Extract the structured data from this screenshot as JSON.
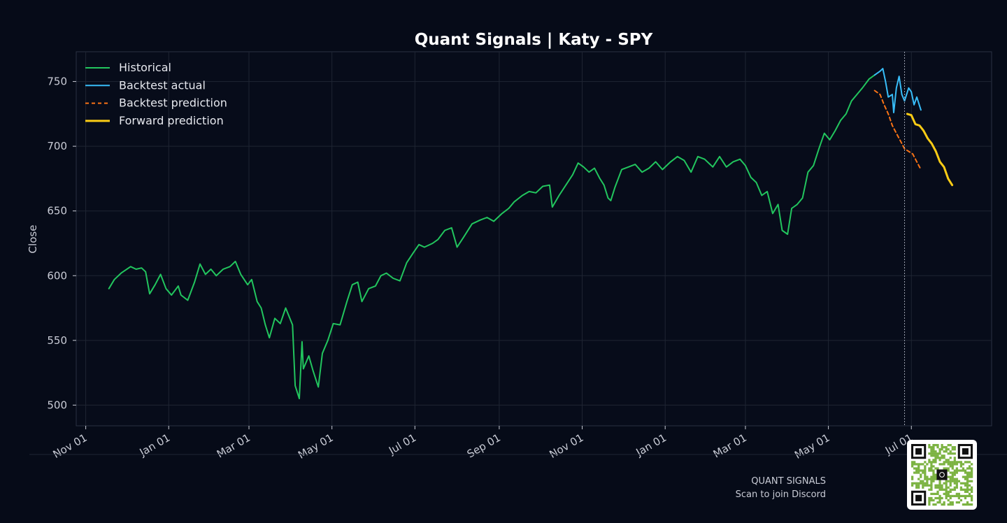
{
  "footer": {
    "brand": "QUANT SIGNALS",
    "cta": "Scan to join Discord"
  },
  "qr_icon": "qr-code-icon",
  "colors": {
    "background": "#060b18",
    "historical": "#22c55e",
    "backtest_actual": "#38bdf8",
    "backtest_prediction": "#f97316",
    "forward_prediction": "#facc15",
    "grid": "#1f2533"
  },
  "chart_data": {
    "type": "line",
    "title": "Quant Signals | Katy - SPY",
    "xlabel": "",
    "ylabel": "Close",
    "ylim": [
      484,
      773
    ],
    "xlim": [
      "2024-10-25",
      "2026-08-29"
    ],
    "grid": true,
    "legend_position": "top-left",
    "x_ticks": [
      "2024-11-01",
      "2025-01-01",
      "2025-03-01",
      "2025-05-01",
      "2025-07-01",
      "2025-09-01",
      "2025-11-01",
      "2026-01-01",
      "2026-03-01",
      "2026-05-01",
      "2026-07-01"
    ],
    "x_tick_labels": [
      "Nov 01",
      "Jan 01",
      "Mar 01",
      "May 01",
      "Jul 01",
      "Sep 01",
      "Nov 01",
      "Jan 01",
      "Mar 01",
      "May 01",
      "Jul 01"
    ],
    "y_ticks": [
      500,
      550,
      600,
      650,
      700,
      750
    ],
    "y_tick_labels": [
      "500",
      "550",
      "600",
      "650",
      "700",
      "750"
    ],
    "vline": "2026-06-26",
    "series": [
      {
        "name": "Historical",
        "style": "solid",
        "points": [
          [
            "2024-11-18",
            590
          ],
          [
            "2024-11-22",
            597
          ],
          [
            "2024-11-27",
            602
          ],
          [
            "2024-12-04",
            607
          ],
          [
            "2024-12-08",
            605
          ],
          [
            "2024-12-12",
            606
          ],
          [
            "2024-12-15",
            603
          ],
          [
            "2024-12-18",
            586
          ],
          [
            "2024-12-22",
            593
          ],
          [
            "2024-12-26",
            601
          ],
          [
            "2024-12-30",
            590
          ],
          [
            "2025-01-03",
            585
          ],
          [
            "2025-01-08",
            592
          ],
          [
            "2025-01-10",
            585
          ],
          [
            "2025-01-15",
            581
          ],
          [
            "2025-01-20",
            595
          ],
          [
            "2025-01-24",
            609
          ],
          [
            "2025-01-28",
            601
          ],
          [
            "2025-02-01",
            605
          ],
          [
            "2025-02-05",
            600
          ],
          [
            "2025-02-10",
            605
          ],
          [
            "2025-02-15",
            607
          ],
          [
            "2025-02-19",
            611
          ],
          [
            "2025-02-23",
            601
          ],
          [
            "2025-02-28",
            593
          ],
          [
            "2025-03-03",
            597
          ],
          [
            "2025-03-07",
            580
          ],
          [
            "2025-03-10",
            575
          ],
          [
            "2025-03-13",
            562
          ],
          [
            "2025-03-16",
            552
          ],
          [
            "2025-03-20",
            567
          ],
          [
            "2025-03-24",
            563
          ],
          [
            "2025-03-28",
            575
          ],
          [
            "2025-04-02",
            562
          ],
          [
            "2025-04-04",
            515
          ],
          [
            "2025-04-07",
            505
          ],
          [
            "2025-04-09",
            549
          ],
          [
            "2025-04-10",
            528
          ],
          [
            "2025-04-14",
            538
          ],
          [
            "2025-04-17",
            527
          ],
          [
            "2025-04-21",
            514
          ],
          [
            "2025-04-24",
            540
          ],
          [
            "2025-04-28",
            550
          ],
          [
            "2025-05-02",
            563
          ],
          [
            "2025-05-07",
            562
          ],
          [
            "2025-05-12",
            580
          ],
          [
            "2025-05-16",
            593
          ],
          [
            "2025-05-20",
            595
          ],
          [
            "2025-05-23",
            580
          ],
          [
            "2025-05-28",
            590
          ],
          [
            "2025-06-02",
            592
          ],
          [
            "2025-06-06",
            600
          ],
          [
            "2025-06-10",
            602
          ],
          [
            "2025-06-15",
            598
          ],
          [
            "2025-06-20",
            596
          ],
          [
            "2025-06-25",
            610
          ],
          [
            "2025-06-30",
            618
          ],
          [
            "2025-07-04",
            624
          ],
          [
            "2025-07-08",
            622
          ],
          [
            "2025-07-14",
            625
          ],
          [
            "2025-07-18",
            628
          ],
          [
            "2025-07-23",
            635
          ],
          [
            "2025-07-28",
            637
          ],
          [
            "2025-08-01",
            622
          ],
          [
            "2025-08-06",
            630
          ],
          [
            "2025-08-12",
            640
          ],
          [
            "2025-08-18",
            643
          ],
          [
            "2025-08-23",
            645
          ],
          [
            "2025-08-28",
            642
          ],
          [
            "2025-09-03",
            648
          ],
          [
            "2025-09-08",
            652
          ],
          [
            "2025-09-12",
            657
          ],
          [
            "2025-09-18",
            662
          ],
          [
            "2025-09-23",
            665
          ],
          [
            "2025-09-28",
            664
          ],
          [
            "2025-10-03",
            669
          ],
          [
            "2025-10-08",
            670
          ],
          [
            "2025-10-10",
            653
          ],
          [
            "2025-10-15",
            662
          ],
          [
            "2025-10-20",
            670
          ],
          [
            "2025-10-25",
            678
          ],
          [
            "2025-10-29",
            687
          ],
          [
            "2025-11-02",
            684
          ],
          [
            "2025-11-06",
            680
          ],
          [
            "2025-11-10",
            683
          ],
          [
            "2025-11-14",
            675
          ],
          [
            "2025-11-17",
            670
          ],
          [
            "2025-11-20",
            660
          ],
          [
            "2025-11-22",
            658
          ],
          [
            "2025-11-25",
            668
          ],
          [
            "2025-11-30",
            682
          ],
          [
            "2025-12-05",
            684
          ],
          [
            "2025-12-10",
            686
          ],
          [
            "2025-12-15",
            680
          ],
          [
            "2025-12-20",
            683
          ],
          [
            "2025-12-25",
            688
          ],
          [
            "2025-12-30",
            682
          ],
          [
            "2026-01-05",
            688
          ],
          [
            "2026-01-10",
            692
          ],
          [
            "2026-01-15",
            689
          ],
          [
            "2026-01-20",
            680
          ],
          [
            "2026-01-25",
            692
          ],
          [
            "2026-01-30",
            690
          ],
          [
            "2026-02-05",
            684
          ],
          [
            "2026-02-10",
            692
          ],
          [
            "2026-02-15",
            684
          ],
          [
            "2026-02-20",
            688
          ],
          [
            "2026-02-25",
            690
          ],
          [
            "2026-03-01",
            685
          ],
          [
            "2026-03-05",
            676
          ],
          [
            "2026-03-09",
            672
          ],
          [
            "2026-03-13",
            662
          ],
          [
            "2026-03-17",
            665
          ],
          [
            "2026-03-21",
            648
          ],
          [
            "2026-03-25",
            655
          ],
          [
            "2026-03-28",
            635
          ],
          [
            "2026-04-01",
            632
          ],
          [
            "2026-04-04",
            652
          ],
          [
            "2026-04-08",
            655
          ],
          [
            "2026-04-12",
            660
          ],
          [
            "2026-04-16",
            680
          ],
          [
            "2026-04-20",
            685
          ],
          [
            "2026-04-24",
            698
          ],
          [
            "2026-04-28",
            710
          ],
          [
            "2026-05-02",
            705
          ],
          [
            "2026-05-06",
            712
          ],
          [
            "2026-05-10",
            720
          ],
          [
            "2026-05-14",
            725
          ],
          [
            "2026-05-18",
            735
          ],
          [
            "2026-05-22",
            740
          ],
          [
            "2026-05-26",
            745
          ],
          [
            "2026-05-31",
            752
          ],
          [
            "2026-06-04",
            755
          ]
        ]
      },
      {
        "name": "Backtest actual",
        "style": "solid",
        "points": [
          [
            "2026-06-04",
            755
          ],
          [
            "2026-06-08",
            758
          ],
          [
            "2026-06-10",
            760
          ],
          [
            "2026-06-12",
            750
          ],
          [
            "2026-06-14",
            738
          ],
          [
            "2026-06-17",
            740
          ],
          [
            "2026-06-18",
            726
          ],
          [
            "2026-06-20",
            745
          ],
          [
            "2026-06-22",
            754
          ],
          [
            "2026-06-24",
            740
          ],
          [
            "2026-06-26",
            735
          ],
          [
            "2026-06-29",
            745
          ],
          [
            "2026-07-01",
            742
          ],
          [
            "2026-07-03",
            732
          ],
          [
            "2026-07-05",
            738
          ],
          [
            "2026-07-08",
            728
          ]
        ]
      },
      {
        "name": "Backtest prediction",
        "style": "dashed",
        "points": [
          [
            "2026-06-04",
            743
          ],
          [
            "2026-06-08",
            740
          ],
          [
            "2026-06-11",
            732
          ],
          [
            "2026-06-14",
            725
          ],
          [
            "2026-06-17",
            716
          ],
          [
            "2026-06-20",
            710
          ],
          [
            "2026-06-23",
            704
          ],
          [
            "2026-06-26",
            698
          ],
          [
            "2026-06-29",
            696
          ],
          [
            "2026-07-02",
            694
          ],
          [
            "2026-07-05",
            688
          ],
          [
            "2026-07-08",
            682
          ]
        ]
      },
      {
        "name": "Forward prediction",
        "style": "solid",
        "points": [
          [
            "2026-06-28",
            725
          ],
          [
            "2026-07-01",
            724
          ],
          [
            "2026-07-04",
            717
          ],
          [
            "2026-07-07",
            716
          ],
          [
            "2026-07-10",
            712
          ],
          [
            "2026-07-13",
            706
          ],
          [
            "2026-07-16",
            702
          ],
          [
            "2026-07-19",
            696
          ],
          [
            "2026-07-22",
            688
          ],
          [
            "2026-07-25",
            684
          ],
          [
            "2026-07-28",
            675
          ],
          [
            "2026-07-31",
            670
          ]
        ]
      }
    ]
  }
}
